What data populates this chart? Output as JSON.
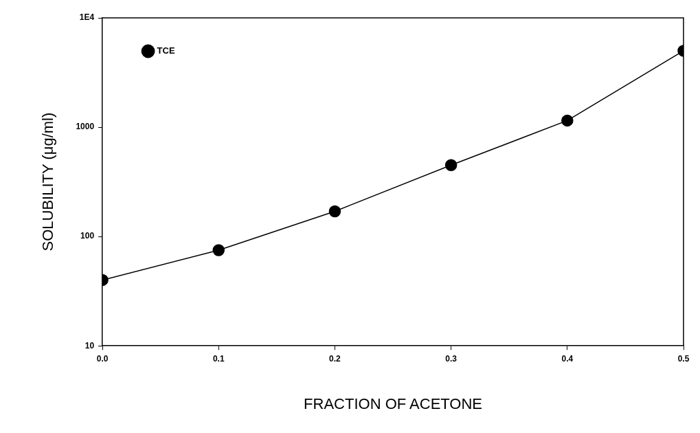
{
  "chart_data": {
    "type": "line",
    "xlabel": "FRACTION OF ACETONE",
    "ylabel": "SOLUBILITY (μg/ml)",
    "x": [
      0,
      0.1,
      0.2,
      0.3,
      0.4,
      0.5
    ],
    "series": [
      {
        "name": "TCE",
        "color": "#000000",
        "values": [
          40,
          75,
          170,
          450,
          1150,
          5000
        ]
      }
    ],
    "xlim": [
      0,
      0.5
    ],
    "xticks": [
      {
        "value": 0,
        "label": "0.0"
      },
      0.1,
      0.2,
      0.3,
      0.4,
      0.5
    ],
    "ylim": [
      10,
      10000
    ],
    "yticks": [
      10,
      100,
      1000,
      {
        "value": 10000,
        "label": "1E4"
      }
    ],
    "log": "y",
    "grid": false,
    "legend": "top left",
    "marker": "circle",
    "line_style": "solid"
  }
}
